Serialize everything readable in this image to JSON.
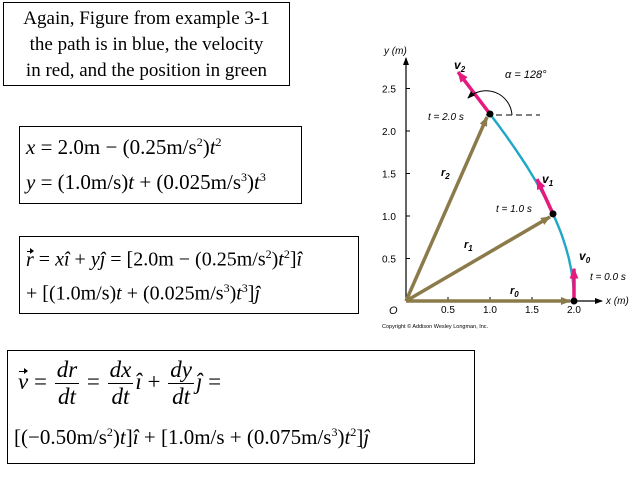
{
  "caption": {
    "line1": "Again, Figure from example 3-1",
    "line2": "the path is in blue, the velocity",
    "line3": "in red, and the position in green"
  },
  "equations": {
    "x_lhs": "x",
    "x_rhs_a": " = 2.0m − (0.25m/s",
    "x_rhs_b": ")",
    "y_lhs": "y",
    "y_rhs_a": " = (1.0m/s)",
    "y_rhs_b": " + (0.025m/s",
    "y_rhs_c": ")",
    "r_line1_a": " = ",
    "r_line1_b": " + ",
    "r_line1_c": " = [2.0m − (0.25m/s",
    "r_line1_d": ")",
    "r_line1_e": "]",
    "r_line2_a": "+ [(1.0m/s)",
    "r_line2_b": " + (0.025m/s",
    "r_line2_c": ")",
    "r_line2_d": "]",
    "v_line1_eq": " = ",
    "v_line1_plus": " + ",
    "v_line2_a": "[(−0.50m/s",
    "v_line2_b": ")",
    "v_line2_c": "]",
    "v_line2_d": " + [1.0m/s + (0.075m/s",
    "v_line2_e": ")",
    "v_line2_f": "]",
    "sup2": "2",
    "sup3": "3",
    "t": "t",
    "x": "x",
    "y": "y",
    "r": "r",
    "v": "v",
    "dr": "dr",
    "dx": "dx",
    "dy": "dy",
    "dt": "dt",
    "i_hat": "î",
    "j_hat": "ĵ"
  },
  "figure": {
    "y_axis_label": "y (m)",
    "x_axis_label": "x (m)",
    "origin_label": "O",
    "x_ticks": [
      "0.5",
      "1.0",
      "1.5",
      "2.0"
    ],
    "y_ticks": [
      "0.5",
      "1.0",
      "1.5",
      "2.0",
      "2.5"
    ],
    "angle_label": "α = 128°",
    "time_labels": [
      "t = 2.0 s",
      "t = 1.0 s",
      "t = 0.0 s"
    ],
    "position_labels": [
      "r2",
      "r1",
      "r0"
    ],
    "velocity_labels": [
      "v2",
      "v1",
      "v0"
    ],
    "copyright": "Copyright © Addison Wesley Longman, Inc.",
    "colors": {
      "path": "#1ea7c7",
      "velocity": "#e6197f",
      "position": "#8c7b4a",
      "axis": "#000000"
    },
    "points": [
      {
        "label": "t = 0.0 s",
        "x": 2.0,
        "y": 0.0
      },
      {
        "label": "t = 1.0 s",
        "x": 1.75,
        "y": 1.0
      },
      {
        "label": "t = 2.0 s",
        "x": 1.0,
        "y": 2.2
      }
    ]
  }
}
